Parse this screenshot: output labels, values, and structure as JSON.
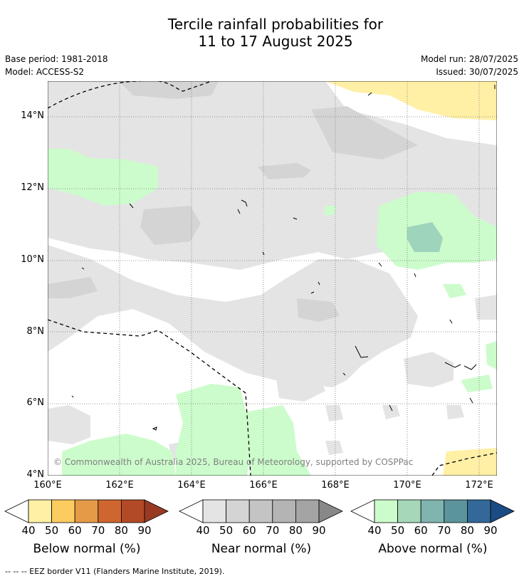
{
  "header": {
    "title_line1": "Tercile rainfall probabilities for",
    "title_line2": "11 to 17 August 2025",
    "base_period": "Base period: 1981-2018",
    "model": "Model: ACCESS-S2",
    "model_run": "Model run: 28/07/2025",
    "issued": "Issued: 30/07/2025"
  },
  "map": {
    "lat_labels": [
      "14°N",
      "12°N",
      "10°N",
      "8°N",
      "6°N",
      "4°N"
    ],
    "lon_labels": [
      "160°E",
      "162°E",
      "164°E",
      "166°E",
      "168°E",
      "170°E",
      "172°E"
    ],
    "copyright": "© Commonwealth of Australia 2025, Bureau of Meteorology, supported by COSPPac",
    "colors": {
      "near_light": "#e4e4e4",
      "near_mid": "#d4d4d4",
      "above_light": "#ccfccc",
      "above_mid": "#9fd4bc",
      "below_light": "#fff0a6"
    }
  },
  "colorbars": {
    "ticks": [
      "40",
      "50",
      "60",
      "70",
      "80",
      "90"
    ],
    "below": {
      "label": "Below normal (%)",
      "colors": [
        "#fff0a6",
        "#fdcc60",
        "#e59a48",
        "#d0662f",
        "#b24a28",
        "#983a22"
      ]
    },
    "near": {
      "label": "Near normal (%)",
      "colors": [
        "#e4e4e4",
        "#d4d4d4",
        "#c4c4c4",
        "#b4b4b4",
        "#a4a4a4",
        "#888888"
      ]
    },
    "above": {
      "label": "Above normal (%)",
      "colors": [
        "#ccfccc",
        "#a4d8b8",
        "#80b4ae",
        "#5c949c",
        "#336898",
        "#1a4b84"
      ]
    }
  },
  "footer": {
    "legend_line": "--  --  -- EEZ border V11 (Flanders Marine Institute, 2019)."
  }
}
